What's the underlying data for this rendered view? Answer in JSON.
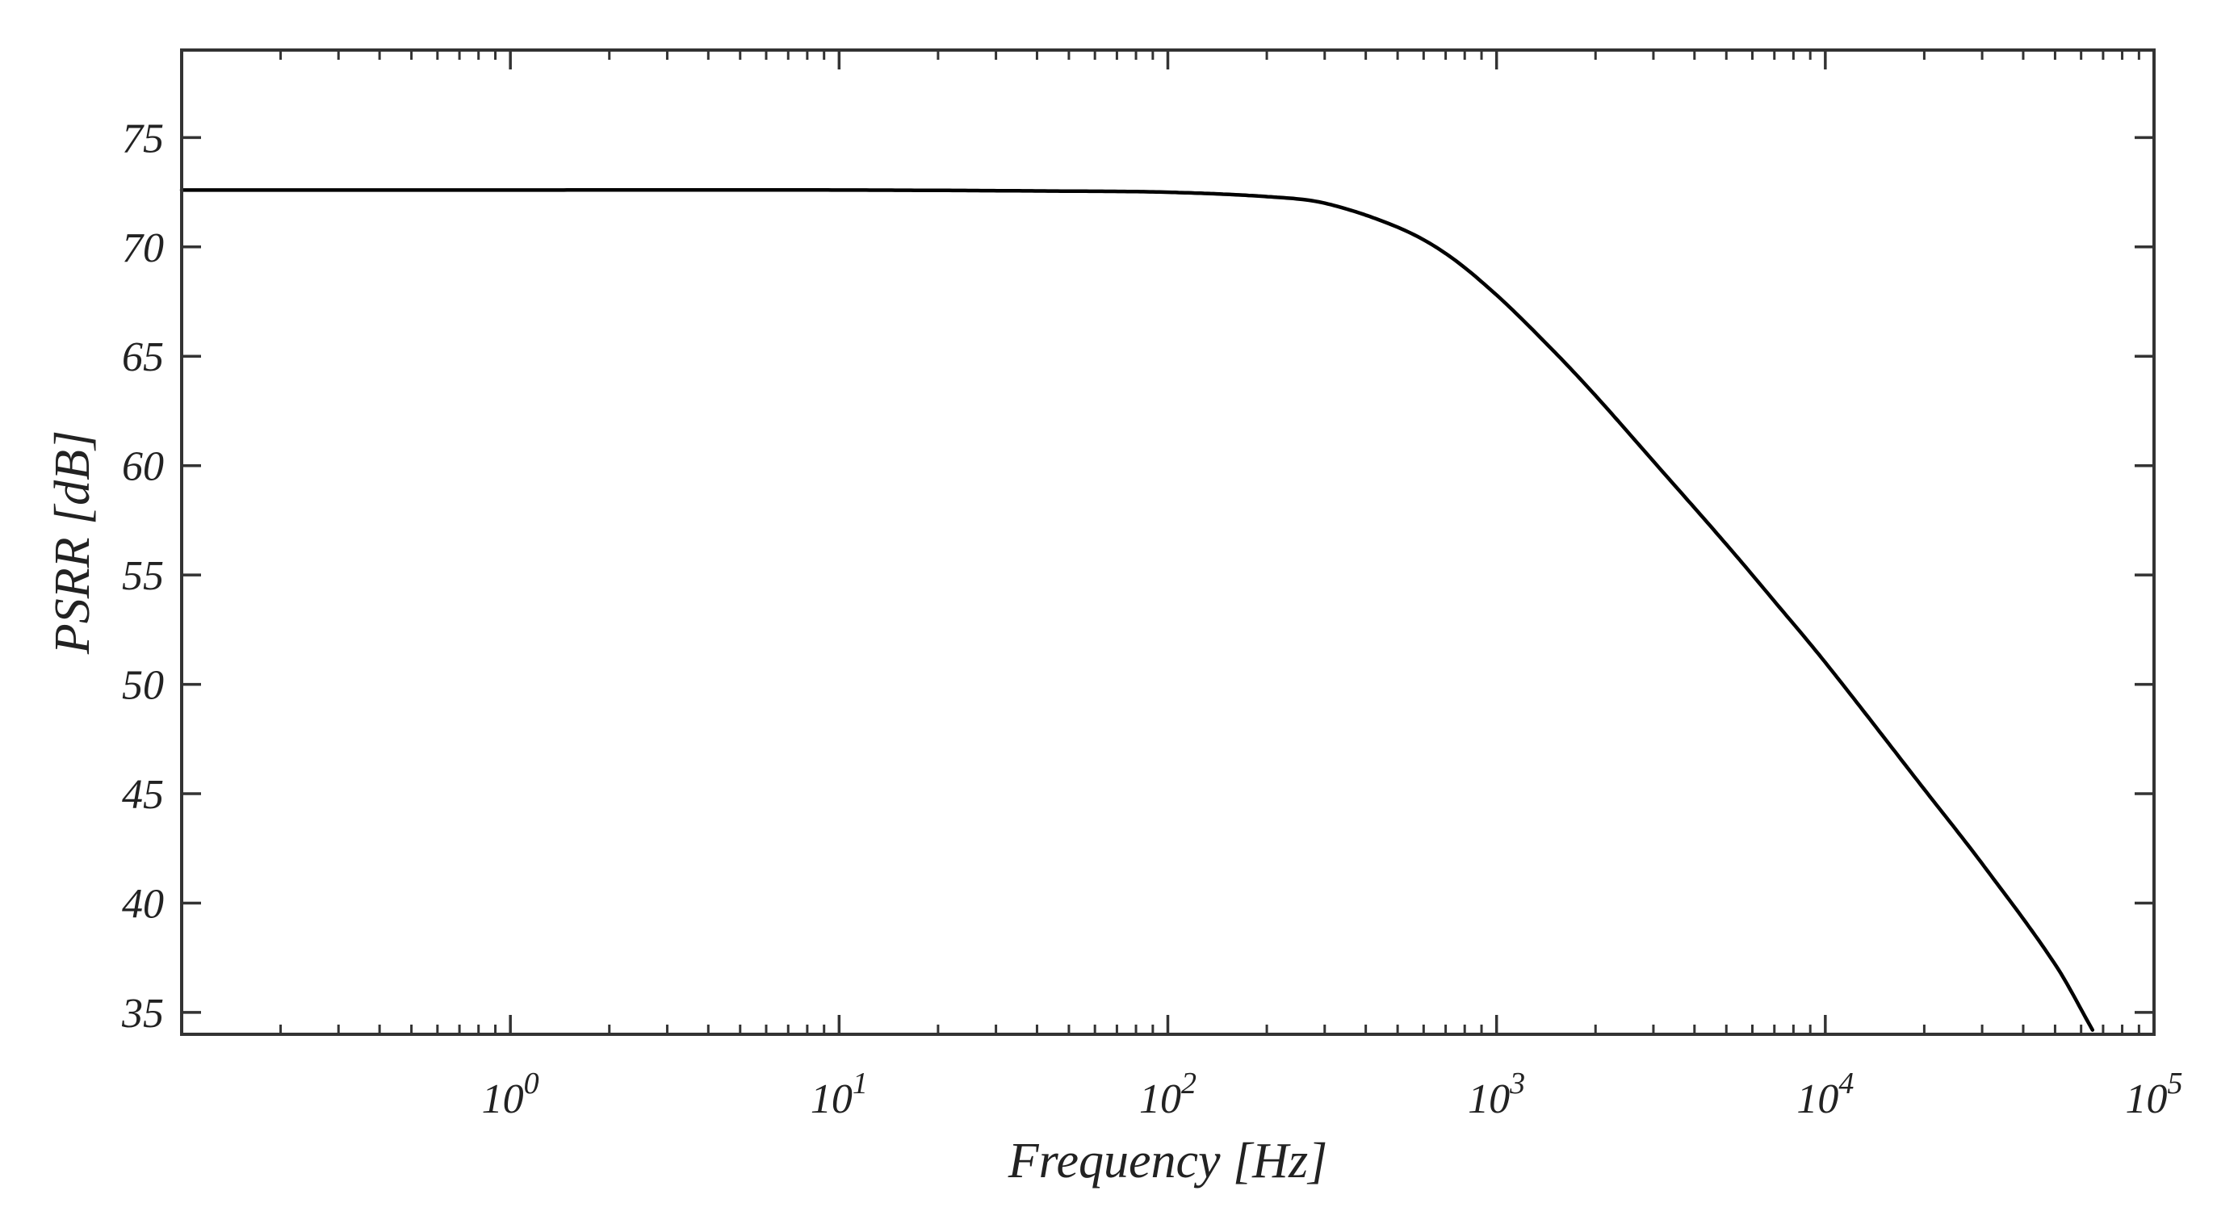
{
  "chart_data": {
    "type": "line",
    "title": "",
    "xlabel": "Frequency [Hz]",
    "ylabel": "PSRR [dB]",
    "xscale": "log",
    "xlim": [
      0.1,
      100000
    ],
    "ylim": [
      34,
      79
    ],
    "grid": false,
    "legend": "none",
    "x_ticks": [
      {
        "value": 1,
        "base": "10",
        "exp": "0"
      },
      {
        "value": 10,
        "base": "10",
        "exp": "1"
      },
      {
        "value": 100,
        "base": "10",
        "exp": "2"
      },
      {
        "value": 1000,
        "base": "10",
        "exp": "3"
      },
      {
        "value": 10000,
        "base": "10",
        "exp": "4"
      },
      {
        "value": 100000,
        "base": "10",
        "exp": "5"
      }
    ],
    "y_ticks": [
      {
        "value": 35,
        "label": "35"
      },
      {
        "value": 40,
        "label": "40"
      },
      {
        "value": 45,
        "label": "45"
      },
      {
        "value": 50,
        "label": "50"
      },
      {
        "value": 55,
        "label": "55"
      },
      {
        "value": 60,
        "label": "60"
      },
      {
        "value": 65,
        "label": "65"
      },
      {
        "value": 70,
        "label": "70"
      },
      {
        "value": 75,
        "label": "75"
      }
    ],
    "series": [
      {
        "color": "#000000",
        "x": [
          0.1,
          1,
          10,
          50,
          100,
          200,
          300,
          500,
          700,
          1000,
          1500,
          2000,
          3000,
          5000,
          7000,
          10000,
          20000,
          30000,
          50000,
          65000
        ],
        "y": [
          72.6,
          72.6,
          72.6,
          72.55,
          72.5,
          72.3,
          72.0,
          70.9,
          69.7,
          67.8,
          65.2,
          63.2,
          60.2,
          56.4,
          53.8,
          51.0,
          45.2,
          41.8,
          37.2,
          34.2
        ]
      }
    ]
  }
}
